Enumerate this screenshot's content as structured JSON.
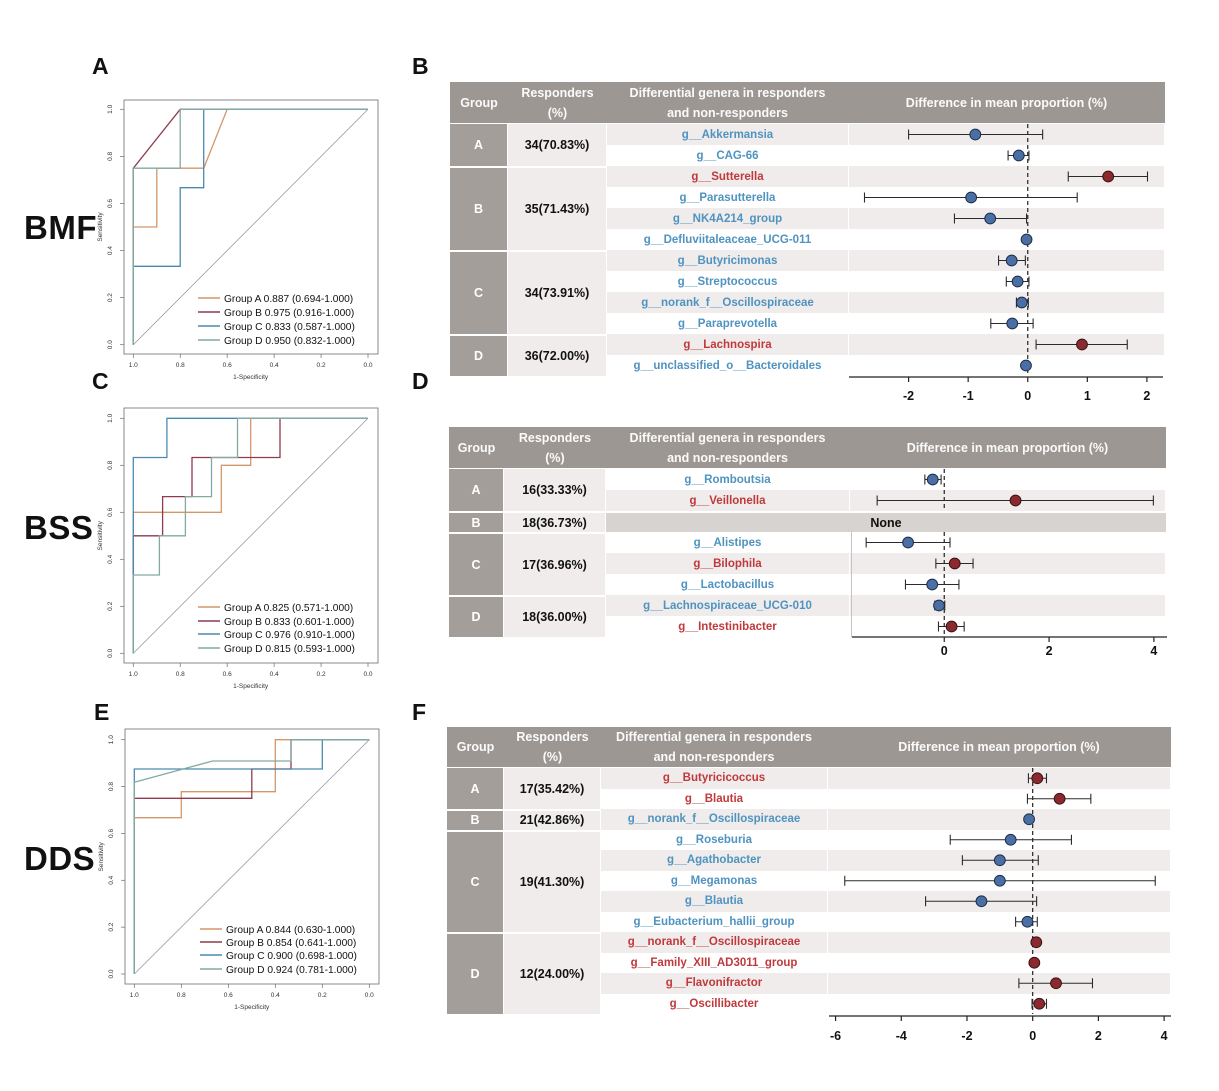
{
  "figure": {
    "row_labels": [
      "BMF",
      "BSS",
      "DDS"
    ]
  },
  "colors": {
    "header_bg": "#9d9793",
    "group_bg": "#a39e9a",
    "stripe_bg": "#efeceb",
    "none_bg": "#d6d3d1",
    "red_text": "#c0393c",
    "blue_text": "#4f93c0",
    "red_dot": "#8b2a2e",
    "blue_dot": "#4a6fa5"
  },
  "chart_data": [
    {
      "panel": "A",
      "type": "line",
      "row_label": "BMF",
      "title": "",
      "xlabel": "1-Specificity",
      "ylabel": "Sensitivity",
      "xlim": [
        1.0,
        0.0
      ],
      "ylim": [
        0.0,
        1.0
      ],
      "xticks": [
        "1.0",
        "0.8",
        "0.6",
        "0.4",
        "0.2",
        "0.0"
      ],
      "yticks": [
        "0.0",
        "0.2",
        "0.4",
        "0.6",
        "0.8",
        "1.0"
      ],
      "grid": false,
      "reference_line": [
        [
          1.0,
          0.0
        ],
        [
          0.0,
          1.0
        ]
      ],
      "legend_position": "bottom-right",
      "series": [
        {
          "name": "Group A",
          "auc": "0.887",
          "ci": "(0.694-1.000)",
          "color": "#d4966a",
          "points": [
            [
              1,
              0
            ],
            [
              1,
              0.5
            ],
            [
              0.9,
              0.5
            ],
            [
              0.9,
              0.75
            ],
            [
              0.7,
              0.75
            ],
            [
              0.6,
              1
            ],
            [
              0,
              1
            ]
          ]
        },
        {
          "name": "Group B",
          "auc": "0.975",
          "ci": "(0.916-1.000)",
          "color": "#8e3b4b",
          "points": [
            [
              1,
              0
            ],
            [
              1,
              0.75
            ],
            [
              0.8,
              1
            ],
            [
              0,
              1
            ]
          ]
        },
        {
          "name": "Group C",
          "auc": "0.833",
          "ci": "(0.587-1.000)",
          "color": "#4a8ab0",
          "points": [
            [
              1,
              0
            ],
            [
              1,
              0.333
            ],
            [
              0.8,
              0.333
            ],
            [
              0.8,
              0.667
            ],
            [
              0.7,
              0.667
            ],
            [
              0.7,
              1
            ],
            [
              0,
              1
            ]
          ]
        },
        {
          "name": "Group D",
          "auc": "0.950",
          "ci": "(0.832-1.000)",
          "color": "#82aaa3",
          "points": [
            [
              1,
              0
            ],
            [
              1,
              0.75
            ],
            [
              0.8,
              0.75
            ],
            [
              0.8,
              1
            ],
            [
              0,
              1
            ]
          ]
        }
      ]
    },
    {
      "panel": "B",
      "type": "table",
      "row_label": "BMF",
      "header": {
        "group": "Group",
        "responders": [
          "Responders",
          "(%)"
        ],
        "genera": [
          "Differential genera in responders",
          "and non-responders"
        ],
        "difference": "Difference in mean proportion (%)"
      },
      "xlabel": "Difference in mean proportion (%)",
      "xlim": [
        -3.0,
        2.27
      ],
      "xticks": [
        -2,
        -1,
        0,
        1,
        2
      ],
      "reference_line_x": 0,
      "groups": [
        {
          "group": "A",
          "responders": "34(70.83%)",
          "genera": [
            {
              "name": "g__Akkermansia",
              "color": "blue",
              "mean": -0.88,
              "ci_low": -2.0,
              "ci_high": 0.25
            },
            {
              "name": "g__CAG-66",
              "color": "blue",
              "mean": -0.15,
              "ci_low": -0.33,
              "ci_high": 0.02
            }
          ]
        },
        {
          "group": "B",
          "responders": "35(71.43%)",
          "genera": [
            {
              "name": "g__Sutterella",
              "color": "red",
              "mean": 1.35,
              "ci_low": 0.68,
              "ci_high": 2.01
            },
            {
              "name": "g__Parasutterella",
              "color": "blue",
              "mean": -0.95,
              "ci_low": -2.74,
              "ci_high": 0.83
            },
            {
              "name": "g__NK4A214_group",
              "color": "blue",
              "mean": -0.63,
              "ci_low": -1.23,
              "ci_high": -0.02
            },
            {
              "name": "g__Defluviitaleaceae_UCG-011",
              "color": "blue",
              "mean": -0.02,
              "ci_low": -0.05,
              "ci_high": 0.0
            }
          ]
        },
        {
          "group": "C",
          "responders": "34(73.91%)",
          "genera": [
            {
              "name": "g__Butyricimonas",
              "color": "blue",
              "mean": -0.27,
              "ci_low": -0.49,
              "ci_high": -0.04
            },
            {
              "name": "g__Streptococcus",
              "color": "blue",
              "mean": -0.17,
              "ci_low": -0.36,
              "ci_high": 0.02
            },
            {
              "name": "g__norank_f__Oscillospiraceae",
              "color": "blue",
              "mean": -0.1,
              "ci_low": -0.19,
              "ci_high": 0.01
            },
            {
              "name": "g__Paraprevotella",
              "color": "blue",
              "mean": -0.26,
              "ci_low": -0.62,
              "ci_high": 0.09
            }
          ]
        },
        {
          "group": "D",
          "responders": "36(72.00%)",
          "genera": [
            {
              "name": "g__Lachnospira",
              "color": "red",
              "mean": 0.91,
              "ci_low": 0.14,
              "ci_high": 1.67
            },
            {
              "name": "g__unclassified_o__Bacteroidales",
              "color": "blue",
              "mean": -0.03,
              "ci_low": -0.05,
              "ci_high": 0.0
            }
          ]
        }
      ]
    },
    {
      "panel": "C",
      "type": "line",
      "row_label": "BSS",
      "title": "",
      "xlabel": "1-Specificity",
      "ylabel": "Sensitivity",
      "xlim": [
        1.0,
        0.0
      ],
      "ylim": [
        0.0,
        1.0
      ],
      "xticks": [
        "1.0",
        "0.8",
        "0.6",
        "0.4",
        "0.2",
        "0.0"
      ],
      "yticks": [
        "0.0",
        "0.2",
        "0.4",
        "0.6",
        "0.8",
        "1.0"
      ],
      "grid": false,
      "reference_line": [
        [
          1.0,
          0.0
        ],
        [
          0.0,
          1.0
        ]
      ],
      "legend_position": "bottom-right",
      "series": [
        {
          "name": "Group A",
          "auc": "0.825",
          "ci": "(0.571-1.000)",
          "color": "#d4966a",
          "points": [
            [
              1,
              0
            ],
            [
              1,
              0.6
            ],
            [
              0.625,
              0.6
            ],
            [
              0.625,
              0.8
            ],
            [
              0.5,
              0.8
            ],
            [
              0.5,
              1
            ],
            [
              0,
              1
            ]
          ]
        },
        {
          "name": "Group B",
          "auc": "0.833",
          "ci": "(0.601-1.000)",
          "color": "#8e3b4b",
          "points": [
            [
              1,
              0
            ],
            [
              1,
              0.5
            ],
            [
              0.875,
              0.5
            ],
            [
              0.875,
              0.667
            ],
            [
              0.75,
              0.667
            ],
            [
              0.75,
              0.833
            ],
            [
              0.375,
              0.833
            ],
            [
              0.375,
              1
            ],
            [
              0,
              1
            ]
          ]
        },
        {
          "name": "Group C",
          "auc": "0.976",
          "ci": "(0.910-1.000)",
          "color": "#4a8ab0",
          "points": [
            [
              1,
              0
            ],
            [
              1,
              0.833
            ],
            [
              0.857,
              0.833
            ],
            [
              0.857,
              1
            ],
            [
              0,
              1
            ]
          ]
        },
        {
          "name": "Group D",
          "auc": "0.815",
          "ci": "(0.593-1.000)",
          "color": "#82aaa3",
          "points": [
            [
              1,
              0
            ],
            [
              1,
              0.333
            ],
            [
              0.889,
              0.333
            ],
            [
              0.889,
              0.5
            ],
            [
              0.778,
              0.5
            ],
            [
              0.778,
              0.667
            ],
            [
              0.667,
              0.667
            ],
            [
              0.667,
              0.833
            ],
            [
              0.556,
              0.833
            ],
            [
              0.556,
              1
            ],
            [
              0,
              1
            ]
          ]
        }
      ]
    },
    {
      "panel": "D",
      "type": "table",
      "row_label": "BSS",
      "header": {
        "group": "Group",
        "responders": [
          "Responders",
          "(%)"
        ],
        "genera": [
          "Differential genera in responders",
          "and non-responders"
        ],
        "difference": "Difference in mean proportion (%)"
      },
      "xlabel": "Difference in mean proportion (%)",
      "xlim": [
        -1.76,
        4.25
      ],
      "xticks": [
        0,
        2,
        4
      ],
      "reference_line_x": 0,
      "groups": [
        {
          "group": "A",
          "responders": "16(33.33%)",
          "genera": [
            {
              "name": "g__Romboutsia",
              "color": "blue",
              "mean": -0.22,
              "ci_low": -0.37,
              "ci_high": -0.06
            },
            {
              "name": "g__Veillonella",
              "color": "red",
              "mean": 1.36,
              "ci_low": -1.28,
              "ci_high": 3.99
            }
          ]
        },
        {
          "group": "B",
          "responders": "18(36.73%)",
          "genera": [],
          "none_label": "None"
        },
        {
          "group": "C",
          "responders": "17(36.96%)",
          "genera": [
            {
              "name": "g__Alistipes",
              "color": "blue",
              "mean": -0.69,
              "ci_low": -1.49,
              "ci_high": 0.11
            },
            {
              "name": "g__Bilophila",
              "color": "red",
              "mean": 0.2,
              "ci_low": -0.16,
              "ci_high": 0.55
            },
            {
              "name": "g__Lactobacillus",
              "color": "blue",
              "mean": -0.23,
              "ci_low": -0.74,
              "ci_high": 0.28
            }
          ]
        },
        {
          "group": "D",
          "responders": "18(36.00%)",
          "genera": [
            {
              "name": "g__Lachnospiraceae_UCG-010",
              "color": "blue",
              "mean": -0.1,
              "ci_low": -0.18,
              "ci_high": 0.01
            },
            {
              "name": "g__Intestinibacter",
              "color": "red",
              "mean": 0.14,
              "ci_low": -0.11,
              "ci_high": 0.38
            }
          ]
        }
      ]
    },
    {
      "panel": "E",
      "type": "line",
      "row_label": "DDS",
      "title": "",
      "xlabel": "1-Specificity",
      "ylabel": "Sensitivity",
      "xlim": [
        1.0,
        0.0
      ],
      "ylim": [
        0.0,
        1.0
      ],
      "xticks": [
        "1.0",
        "0.8",
        "0.6",
        "0.4",
        "0.2",
        "0.0"
      ],
      "yticks": [
        "0.0",
        "0.2",
        "0.4",
        "0.6",
        "0.8",
        "1.0"
      ],
      "grid": false,
      "reference_line": [
        [
          1.0,
          0.0
        ],
        [
          0.0,
          1.0
        ]
      ],
      "legend_position": "bottom-right",
      "series": [
        {
          "name": "Group A",
          "auc": "0.844",
          "ci": "(0.630-1.000)",
          "color": "#d4966a",
          "points": [
            [
              1,
              0
            ],
            [
              1,
              0.667
            ],
            [
              0.8,
              0.667
            ],
            [
              0.8,
              0.778
            ],
            [
              0.4,
              0.778
            ],
            [
              0.4,
              1
            ],
            [
              0,
              1
            ]
          ]
        },
        {
          "name": "Group B",
          "auc": "0.854",
          "ci": "(0.641-1.000)",
          "color": "#8e3b4b",
          "points": [
            [
              1,
              0
            ],
            [
              1,
              0.75
            ],
            [
              0.5,
              0.75
            ],
            [
              0.5,
              0.875
            ],
            [
              0.333,
              0.875
            ],
            [
              0.333,
              1
            ],
            [
              0,
              1
            ]
          ]
        },
        {
          "name": "Group C",
          "auc": "0.900",
          "ci": "(0.698-1.000)",
          "color": "#4a8ab0",
          "points": [
            [
              1,
              0
            ],
            [
              1,
              0.875
            ],
            [
              0.2,
              0.875
            ],
            [
              0.2,
              1
            ],
            [
              0,
              1
            ]
          ]
        },
        {
          "name": "Group D",
          "auc": "0.924",
          "ci": "(0.781-1.000)",
          "color": "#82aaa3",
          "points": [
            [
              1,
              0
            ],
            [
              1,
              0.818
            ],
            [
              0.667,
              0.909
            ],
            [
              0.333,
              0.909
            ],
            [
              0.333,
              1
            ],
            [
              0,
              1
            ]
          ]
        }
      ]
    },
    {
      "panel": "F",
      "type": "table",
      "row_label": "DDS",
      "header": {
        "group": "Group",
        "responders": [
          "Responders",
          "(%)"
        ],
        "genera": [
          "Differential genera in responders",
          "and non-responders"
        ],
        "difference": "Difference in mean proportion (%)"
      },
      "xlabel": "Difference in mean proportion (%)",
      "xlim": [
        -6.2,
        4.21
      ],
      "xticks": [
        -6,
        -4,
        -2,
        0,
        2,
        4
      ],
      "reference_line_x": 0,
      "groups": [
        {
          "group": "A",
          "responders": "17(35.42%)",
          "genera": [
            {
              "name": "g__Butyricicoccus",
              "color": "red",
              "mean": 0.14,
              "ci_low": -0.13,
              "ci_high": 0.42
            },
            {
              "name": "g__Blautia",
              "color": "red",
              "mean": 0.82,
              "ci_low": -0.16,
              "ci_high": 1.77
            }
          ]
        },
        {
          "group": "B",
          "responders": "21(42.86%)",
          "genera": [
            {
              "name": "g__norank_f__Oscillospiraceae",
              "color": "blue",
              "mean": -0.11,
              "ci_low": -0.16,
              "ci_high": -0.04
            }
          ]
        },
        {
          "group": "C",
          "responders": "19(41.30%)",
          "genera": [
            {
              "name": "g__Roseburia",
              "color": "blue",
              "mean": -0.67,
              "ci_low": -2.51,
              "ci_high": 1.18
            },
            {
              "name": "g__Agathobacter",
              "color": "blue",
              "mean": -1.0,
              "ci_low": -2.14,
              "ci_high": 0.17
            },
            {
              "name": "g__Megamonas",
              "color": "blue",
              "mean": -1.0,
              "ci_low": -5.72,
              "ci_high": 3.73
            },
            {
              "name": "g__Blautia",
              "color": "blue",
              "mean": -1.56,
              "ci_low": -3.26,
              "ci_high": 0.12
            },
            {
              "name": "g__Eubacterium_hallii_group",
              "color": "blue",
              "mean": -0.16,
              "ci_low": -0.52,
              "ci_high": 0.14
            }
          ]
        },
        {
          "group": "D",
          "responders": "12(24.00%)",
          "genera": [
            {
              "name": "g__norank_f__Oscillospiraceae",
              "color": "red",
              "mean": 0.11,
              "ci_low": 0.0,
              "ci_high": 0.16
            },
            {
              "name": "g__Family_XIII_AD3011_group",
              "color": "red",
              "mean": 0.05,
              "ci_low": 0.0,
              "ci_high": 0.09
            },
            {
              "name": "g__Flavonifractor",
              "color": "red",
              "mean": 0.71,
              "ci_low": -0.42,
              "ci_high": 1.82
            },
            {
              "name": "g__Oscillibacter",
              "color": "red",
              "mean": 0.2,
              "ci_low": -0.02,
              "ci_high": 0.42
            }
          ]
        }
      ]
    }
  ]
}
